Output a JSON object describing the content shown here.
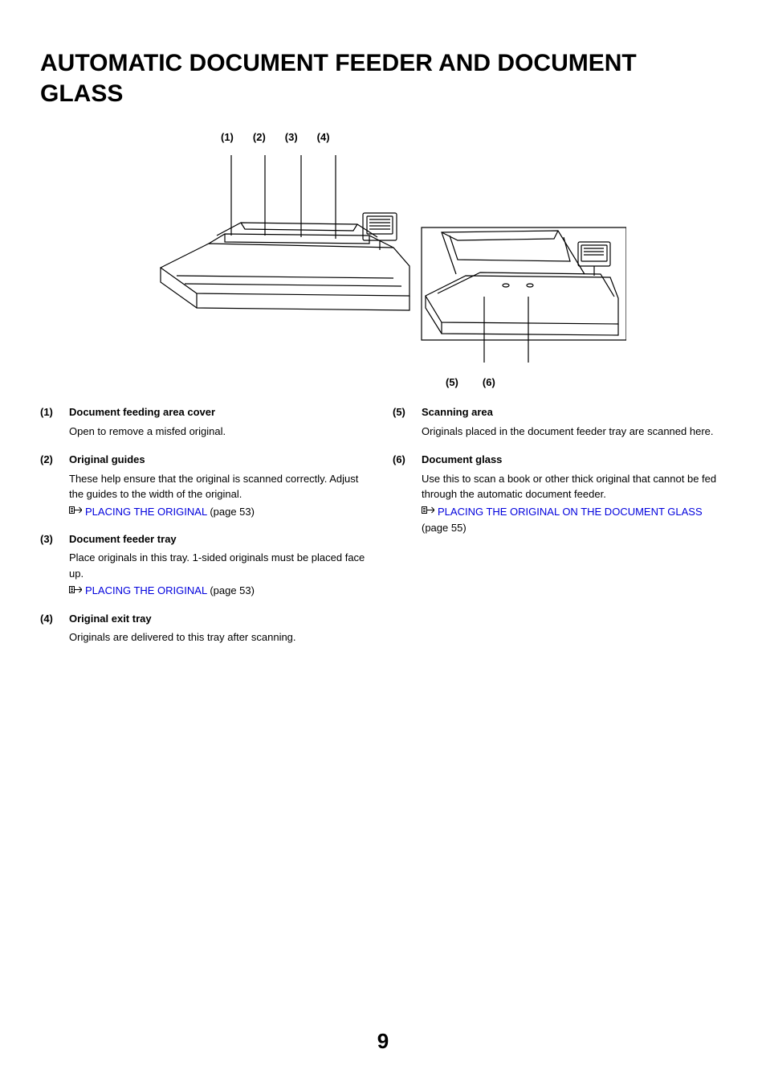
{
  "title": "AUTOMATIC DOCUMENT FEEDER AND DOCUMENT GLASS",
  "page_number": "9",
  "diagram": {
    "top_callouts": [
      "(1)",
      "(2)",
      "(3)",
      "(4)"
    ],
    "bottom_callouts": [
      "(5)",
      "(6)"
    ],
    "stroke_color": "#000000",
    "bg_color": "#ffffff"
  },
  "link_color": "#0000dd",
  "left_items": [
    {
      "num": "(1)",
      "title": "Document feeding area cover",
      "desc": "Open to remove a misfed original.",
      "link": null
    },
    {
      "num": "(2)",
      "title": "Original guides",
      "desc": "These help ensure that the original is scanned correctly. Adjust the guides to the width of the original.",
      "link": {
        "text": "PLACING THE ORIGINAL",
        "page": " (page 53)"
      }
    },
    {
      "num": "(3)",
      "title": "Document feeder tray",
      "desc": "Place originals in this tray. 1-sided originals must be placed face up.",
      "link": {
        "text": "PLACING THE ORIGINAL",
        "page": " (page 53)"
      }
    },
    {
      "num": "(4)",
      "title": "Original exit tray",
      "desc": "Originals are delivered to this tray after scanning.",
      "link": null
    }
  ],
  "right_items": [
    {
      "num": "(5)",
      "title": "Scanning area",
      "desc": "Originals placed in the document feeder tray are scanned here.",
      "link": null
    },
    {
      "num": "(6)",
      "title": "Document glass",
      "desc": "Use this to scan a book or other thick original that cannot be fed through the automatic document feeder.",
      "link": {
        "text": "PLACING THE ORIGINAL ON THE DOCUMENT GLASS",
        "page": " (page 55)"
      }
    }
  ]
}
